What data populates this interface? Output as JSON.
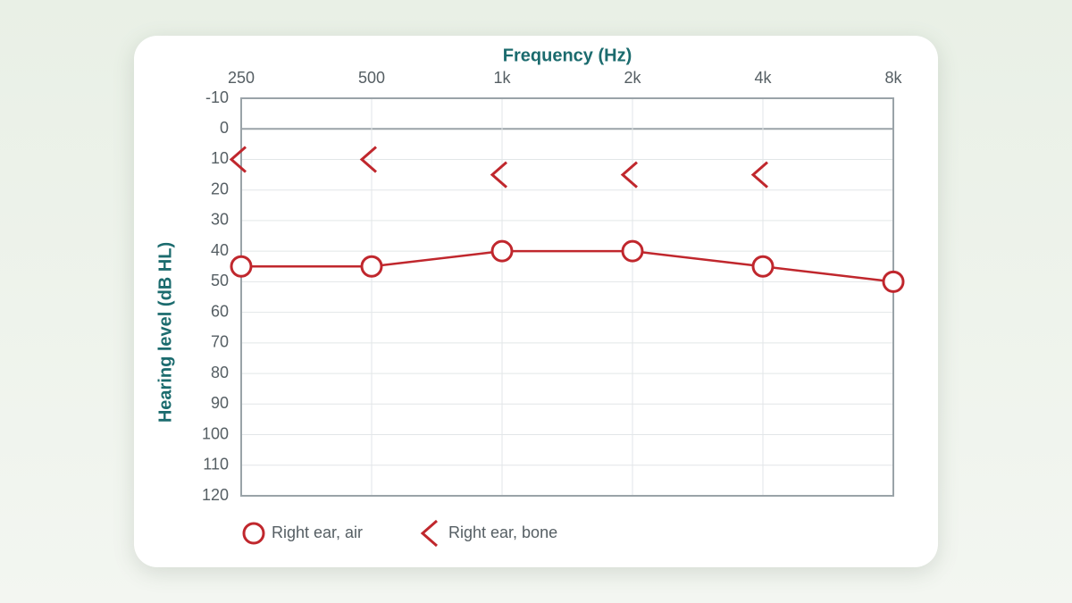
{
  "chart_data": {
    "type": "audiogram",
    "x_label": "Frequency (Hz)",
    "y_label": "Hearing level (dB HL)",
    "categories": [
      "250",
      "500",
      "1k",
      "2k",
      "4k",
      "8k"
    ],
    "ylim": [
      -10,
      120
    ],
    "y_inverted": true,
    "yticks": [
      -10,
      0,
      10,
      20,
      30,
      40,
      50,
      60,
      70,
      80,
      90,
      100,
      110,
      120
    ],
    "grid": true,
    "series": [
      {
        "name": "Right ear, air",
        "color": "#c0272d",
        "marker": "circle",
        "line": true,
        "values": [
          45,
          45,
          40,
          40,
          45,
          50
        ]
      },
      {
        "name": "Right ear, bone",
        "color": "#c0272d",
        "marker": "left-bracket",
        "line": false,
        "values": [
          10,
          10,
          15,
          15,
          15,
          null
        ]
      }
    ]
  }
}
